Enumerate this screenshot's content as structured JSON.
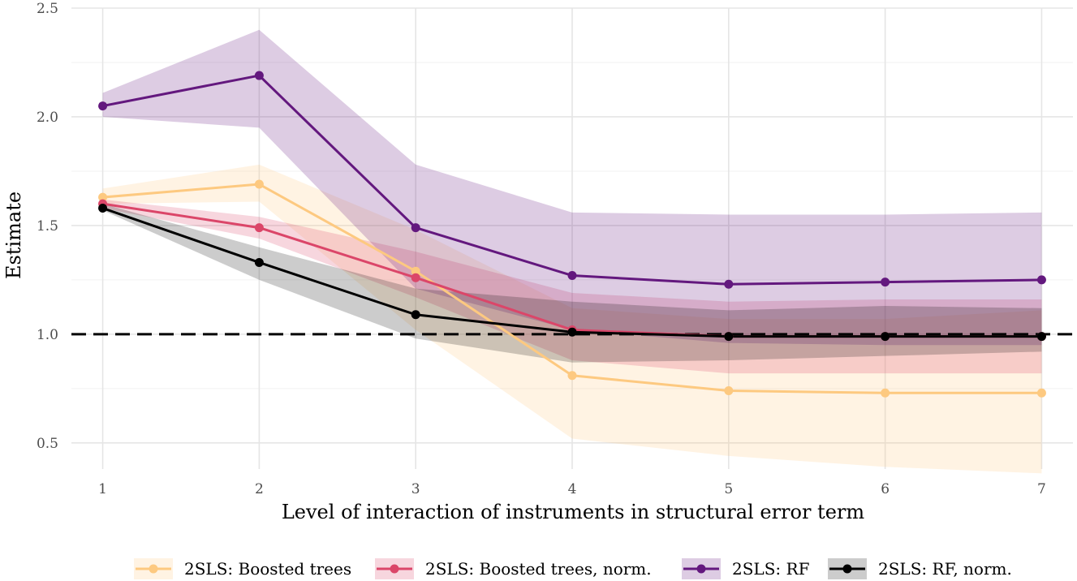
{
  "chart_data": {
    "type": "line",
    "xlabel": "Level of interaction of instruments in structural error term",
    "ylabel": "Estimate",
    "x": [
      1,
      2,
      3,
      4,
      5,
      6,
      7
    ],
    "xlim": [
      0.8,
      7.2
    ],
    "ylim": [
      0.38,
      2.5
    ],
    "x_ticks": [
      1,
      2,
      3,
      4,
      5,
      6,
      7
    ],
    "y_ticks": [
      0.5,
      1.0,
      1.5,
      2.0,
      2.5
    ],
    "y_tick_labels": [
      "0.5",
      "1.0",
      "1.5",
      "2.0",
      "2.5"
    ],
    "reference_line": {
      "y": 1.0,
      "style": "dashed",
      "color": "#000000"
    },
    "grid": true,
    "legend_position": "bottom",
    "series": [
      {
        "name": "2SLS: Boosted trees",
        "color": "#FDC980",
        "band_opacity": 0.22,
        "values": [
          1.63,
          1.69,
          1.29,
          0.81,
          0.74,
          0.73,
          0.73
        ],
        "lower": [
          1.6,
          1.61,
          1.02,
          0.52,
          0.44,
          0.39,
          0.36
        ],
        "upper": [
          1.67,
          1.78,
          1.48,
          1.12,
          1.07,
          1.07,
          1.11
        ]
      },
      {
        "name": "2SLS: Boosted trees, norm.",
        "color": "#DB4669",
        "band_opacity": 0.22,
        "values": [
          1.6,
          1.49,
          1.26,
          1.02,
          0.99,
          0.99,
          0.99
        ],
        "lower": [
          1.58,
          1.44,
          1.17,
          0.88,
          0.82,
          0.82,
          0.82
        ],
        "upper": [
          1.62,
          1.54,
          1.38,
          1.19,
          1.15,
          1.16,
          1.16
        ]
      },
      {
        "name": "2SLS: RF",
        "color": "#63187E",
        "band_opacity": 0.22,
        "values": [
          2.05,
          2.19,
          1.49,
          1.27,
          1.23,
          1.24,
          1.25
        ],
        "lower": [
          2.0,
          1.95,
          1.21,
          1.02,
          0.96,
          0.95,
          0.95
        ],
        "upper": [
          2.11,
          2.4,
          1.78,
          1.56,
          1.55,
          1.55,
          1.56
        ]
      },
      {
        "name": "2SLS: RF, norm.",
        "color": "#000000",
        "band_opacity": 0.2,
        "values": [
          1.58,
          1.33,
          1.09,
          1.01,
          0.99,
          0.99,
          0.99
        ],
        "lower": [
          1.57,
          1.25,
          0.98,
          0.87,
          0.88,
          0.9,
          0.92
        ],
        "upper": [
          1.6,
          1.4,
          1.21,
          1.15,
          1.11,
          1.13,
          1.12
        ]
      }
    ]
  }
}
